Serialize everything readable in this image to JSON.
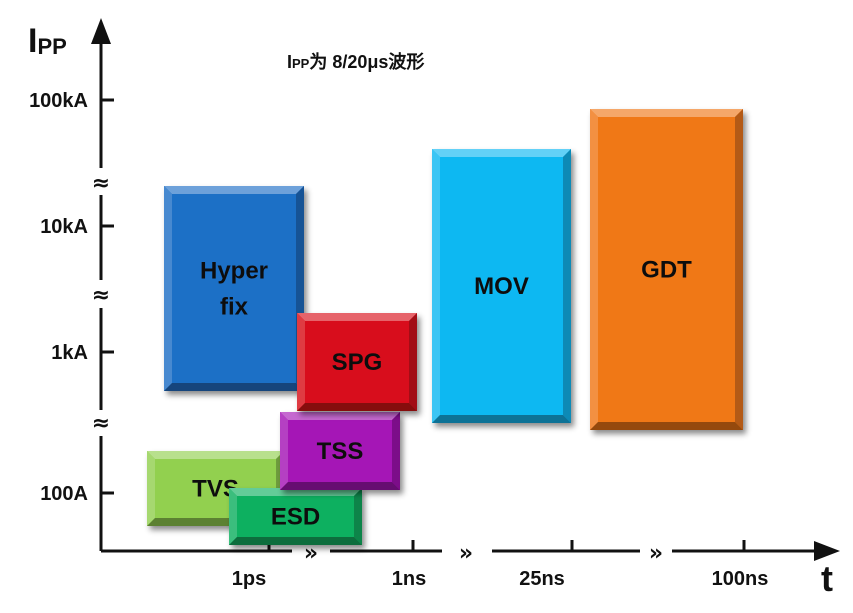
{
  "chart_data": {
    "type": "range-box",
    "y_axis": {
      "title_main": "I",
      "title_sub": "PP",
      "scale": "log",
      "ticks": [
        "100kA",
        "10kA",
        "1kA",
        "100A"
      ],
      "axis_breaks": true
    },
    "x_axis": {
      "title": "t",
      "ticks": [
        "1ps",
        "1ns",
        "25ns",
        "100ns"
      ],
      "axis_breaks": true
    },
    "note": {
      "main": "I",
      "sub": "PP",
      "rest": "为 8/20μs波形"
    },
    "series": [
      {
        "name": "Hyper fix",
        "lines": [
          "Hyper",
          "fix"
        ],
        "color": "#1f6fc6"
      },
      {
        "name": "SPG",
        "lines": [
          "SPG"
        ],
        "color": "#d8101a"
      },
      {
        "name": "TSS",
        "lines": [
          "TSS"
        ],
        "color": "#a516b6"
      },
      {
        "name": "TVS",
        "lines": [
          "TVS"
        ],
        "color": "#92d050"
      },
      {
        "name": "ESD",
        "lines": [
          "ESD"
        ],
        "color": "#10b060"
      },
      {
        "name": "MOV",
        "lines": [
          "MOV"
        ],
        "color": "#10b8f2"
      },
      {
        "name": "GDT",
        "lines": [
          "GDT"
        ],
        "color": "#f07818"
      }
    ]
  }
}
